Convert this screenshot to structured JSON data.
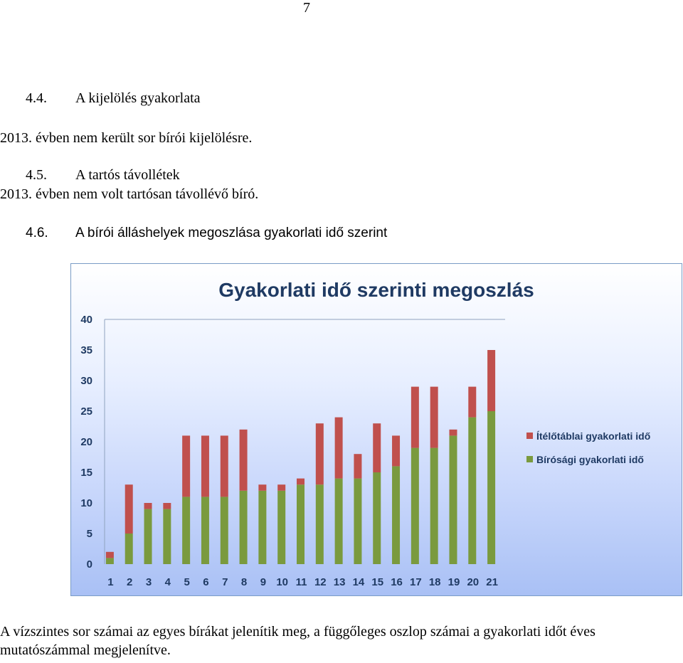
{
  "page_number": "7",
  "sections": {
    "s44": {
      "number": "4.4.",
      "title": "A kijelölés gyakorlata",
      "text": "2013. évben nem került sor bírói kijelölésre."
    },
    "s45": {
      "number": "4.5.",
      "title": "A tartós távollétek",
      "text": "2013. évben nem volt tartósan távollévő bíró."
    },
    "s46": {
      "number": "4.6.",
      "title": "A bírói álláshelyek megoszlása gyakorlati idő szerint"
    }
  },
  "caption": "A vízszintes sor számai az egyes bírákat jelenítik meg, a függőleges oszlop számai a gyakorlati időt éves mutatószámmal megjelenítve.",
  "colors": {
    "birosagi": "#7a9a3e",
    "iteloteblai": "#c0504d",
    "axis_text": "#1f3a63"
  },
  "chart_data": {
    "type": "bar",
    "stacked": true,
    "title": "Gyakorlati idő szerinti megoszlás",
    "xlabel": "",
    "ylabel": "",
    "ylim": [
      0,
      40
    ],
    "yticks": [
      0,
      5,
      10,
      15,
      20,
      25,
      30,
      35,
      40
    ],
    "grid": false,
    "legend_position": "right",
    "categories": [
      "1",
      "2",
      "3",
      "4",
      "5",
      "6",
      "7",
      "8",
      "9",
      "10",
      "11",
      "12",
      "13",
      "14",
      "15",
      "16",
      "17",
      "18",
      "19",
      "20",
      "21"
    ],
    "series": [
      {
        "name": "Bírósági gyakorlati idő",
        "color": "#7a9a3e",
        "values": [
          1,
          5,
          9,
          9,
          11,
          11,
          11,
          12,
          12,
          12,
          13,
          13,
          14,
          14,
          15,
          16,
          19,
          19,
          21,
          24,
          25
        ]
      },
      {
        "name": "Ítélőtáblai gyakorlati idő",
        "color": "#c0504d",
        "values": [
          1,
          8,
          1,
          1,
          10,
          10,
          10,
          10,
          1,
          1,
          1,
          10,
          10,
          4,
          8,
          5,
          10,
          10,
          1,
          5,
          10
        ]
      }
    ],
    "legend_order": [
      "Ítélőtáblai gyakorlati idő",
      "Bírósági gyakorlati idő"
    ]
  }
}
